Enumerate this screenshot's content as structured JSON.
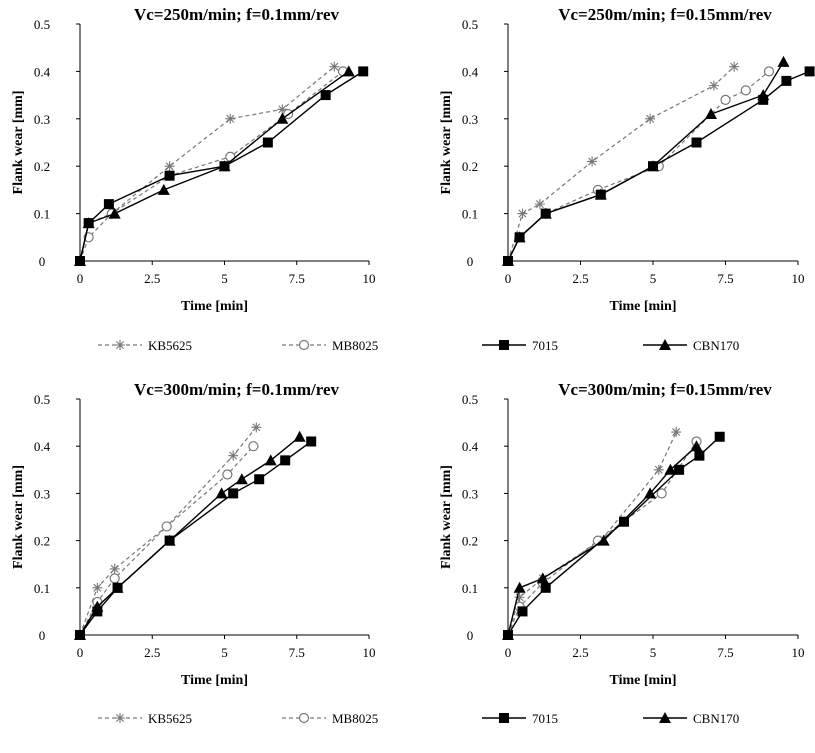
{
  "series_styles": {
    "KB5625": {
      "color": "#777777",
      "dash": "4,3",
      "marker": "star"
    },
    "MB8025": {
      "color": "#777777",
      "dash": "4,3",
      "marker": "circle"
    },
    "7015": {
      "color": "#000000",
      "dash": "",
      "marker": "square"
    },
    "CBN170": {
      "color": "#000000",
      "dash": "",
      "marker": "triangle"
    }
  },
  "legends": [
    {
      "items": [
        "KB5625",
        "MB8025",
        "7015",
        "CBN170"
      ]
    },
    {
      "items": [
        "KB5625",
        "MB8025",
        "7015",
        "CBN170"
      ]
    }
  ],
  "chart_data": [
    {
      "type": "line",
      "title": "Vc=250m/min; f=0.1mm/rev",
      "xlabel": "Time [min]",
      "ylabel": "Flank wear [mm]",
      "xlim": [
        0,
        10
      ],
      "ylim": [
        0,
        0.5
      ],
      "xticks": [
        "0",
        "2.5",
        "5",
        "7.5",
        "10"
      ],
      "yticks": [
        "0",
        "0.1",
        "0.2",
        "0.3",
        "0.4",
        "0.5"
      ],
      "grid": false,
      "series": [
        {
          "name": "KB5625",
          "x": [
            0,
            0.3,
            1.1,
            3.1,
            5.2,
            7,
            8.8
          ],
          "y": [
            0,
            0.08,
            0.1,
            0.2,
            0.3,
            0.32,
            0.41
          ]
        },
        {
          "name": "MB8025",
          "x": [
            0,
            0.3,
            1.1,
            3.1,
            5.2,
            7.2,
            9.1
          ],
          "y": [
            0,
            0.05,
            0.1,
            0.18,
            0.22,
            0.31,
            0.4
          ]
        },
        {
          "name": "7015",
          "x": [
            0,
            0.3,
            1,
            3.1,
            5,
            6.5,
            8.5,
            9.8
          ],
          "y": [
            0,
            0.08,
            0.12,
            0.18,
            0.2,
            0.25,
            0.35,
            0.4
          ]
        },
        {
          "name": "CBN170",
          "x": [
            0,
            0.3,
            1.2,
            2.9,
            5,
            7,
            9.3
          ],
          "y": [
            0,
            0.08,
            0.1,
            0.15,
            0.2,
            0.3,
            0.4
          ]
        }
      ]
    },
    {
      "type": "line",
      "title": "Vc=250m/min; f=0.15mm/rev",
      "xlabel": "Time [min]",
      "ylabel": "Flank wear [mm]",
      "xlim": [
        0,
        10
      ],
      "ylim": [
        0,
        0.5
      ],
      "xticks": [
        "0",
        "2.5",
        "5",
        "7.5",
        "10"
      ],
      "yticks": [
        "0",
        "0.1",
        "0.2",
        "0.3",
        "0.4",
        "0.5"
      ],
      "grid": false,
      "series": [
        {
          "name": "KB5625",
          "x": [
            0,
            0.5,
            1.1,
            2.9,
            4.9,
            7.1,
            7.8
          ],
          "y": [
            0,
            0.1,
            0.12,
            0.21,
            0.3,
            0.37,
            0.41
          ]
        },
        {
          "name": "MB8025",
          "x": [
            0,
            0.4,
            1.3,
            3.1,
            5.2,
            7.5,
            8.2,
            9.0
          ],
          "y": [
            0,
            0.05,
            0.1,
            0.15,
            0.2,
            0.34,
            0.36,
            0.4
          ]
        },
        {
          "name": "7015",
          "x": [
            0,
            0.4,
            1.3,
            3.2,
            5,
            6.5,
            8.8,
            9.6,
            10.4
          ],
          "y": [
            0,
            0.05,
            0.1,
            0.14,
            0.2,
            0.25,
            0.34,
            0.38,
            0.4
          ]
        },
        {
          "name": "CBN170",
          "x": [
            0,
            0.4,
            1.3,
            3.2,
            5,
            7,
            8.8,
            9.5
          ],
          "y": [
            0,
            0.05,
            0.1,
            0.14,
            0.2,
            0.31,
            0.35,
            0.42
          ]
        }
      ]
    },
    {
      "type": "line",
      "title": "Vc=300m/min; f=0.1mm/rev",
      "xlabel": "Time [min]",
      "ylabel": "Flank wear [mm]",
      "xlim": [
        0,
        10
      ],
      "ylim": [
        0,
        0.5
      ],
      "xticks": [
        "0",
        "2.5",
        "5",
        "7.5",
        "10"
      ],
      "yticks": [
        "0",
        "0.1",
        "0.2",
        "0.3",
        "0.4",
        "0.5"
      ],
      "grid": false,
      "series": [
        {
          "name": "KB5625",
          "x": [
            0,
            0.6,
            1.2,
            3.0,
            5.3,
            6.1
          ],
          "y": [
            0,
            0.1,
            0.14,
            0.23,
            0.38,
            0.44
          ]
        },
        {
          "name": "MB8025",
          "x": [
            0,
            0.6,
            1.2,
            3.0,
            5.1,
            6.0
          ],
          "y": [
            0,
            0.07,
            0.12,
            0.23,
            0.34,
            0.4
          ]
        },
        {
          "name": "7015",
          "x": [
            0,
            0.6,
            1.3,
            3.1,
            5.3,
            6.2,
            7.1,
            8.0
          ],
          "y": [
            0,
            0.05,
            0.1,
            0.2,
            0.3,
            0.33,
            0.37,
            0.41
          ]
        },
        {
          "name": "CBN170",
          "x": [
            0,
            0.6,
            1.3,
            3.1,
            4.9,
            5.6,
            6.6,
            7.6
          ],
          "y": [
            0,
            0.06,
            0.1,
            0.2,
            0.3,
            0.33,
            0.37,
            0.42
          ]
        }
      ]
    },
    {
      "type": "line",
      "title": "Vc=300m/min; f=0.15mm/rev",
      "xlabel": "Time [min]",
      "ylabel": "Flank wear [mm]",
      "xlim": [
        0,
        10
      ],
      "ylim": [
        0,
        0.5
      ],
      "xticks": [
        "0",
        "2.5",
        "5",
        "7.5",
        "10"
      ],
      "yticks": [
        "0",
        "0.1",
        "0.2",
        "0.3",
        "0.4",
        "0.5"
      ],
      "grid": false,
      "series": [
        {
          "name": "KB5625",
          "x": [
            0,
            0.4,
            1.2,
            3.2,
            5.2,
            5.8
          ],
          "y": [
            0,
            0.08,
            0.12,
            0.2,
            0.35,
            0.43
          ]
        },
        {
          "name": "MB8025",
          "x": [
            0,
            0.4,
            1.2,
            3.1,
            5.3,
            6.5
          ],
          "y": [
            0,
            0.06,
            0.11,
            0.2,
            0.3,
            0.41
          ]
        },
        {
          "name": "7015",
          "x": [
            0,
            0.5,
            1.3,
            4.0,
            5.9,
            6.6,
            7.3
          ],
          "y": [
            0,
            0.05,
            0.1,
            0.24,
            0.35,
            0.38,
            0.42
          ]
        },
        {
          "name": "CBN170",
          "x": [
            0,
            0.4,
            1.2,
            3.3,
            4.9,
            5.6,
            6.5
          ],
          "y": [
            0,
            0.1,
            0.12,
            0.2,
            0.3,
            0.35,
            0.4
          ]
        }
      ]
    }
  ]
}
